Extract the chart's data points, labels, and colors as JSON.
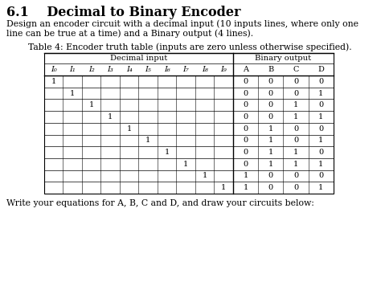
{
  "title": "6.1    Decimal to Binary Encoder",
  "description_line1": "Design an encoder circuit with a decimal input (10 inputs lines, where only one",
  "description_line2": "line can be true at a time) and a Binary output (4 lines).",
  "table_caption": "Table 4: Encoder truth table (inputs are zero unless otherwise specified).",
  "col_header_sub_dec": [
    "I₀",
    "I₁",
    "I₂",
    "I₃",
    "I₄",
    "I₅",
    "I₆",
    "I₇",
    "I₈",
    "I₉"
  ],
  "col_header_sub_bin": [
    "A",
    "B",
    "C",
    "D"
  ],
  "rows": [
    [
      "1",
      "",
      "",
      "",
      "",
      "",
      "",
      "",
      "",
      "",
      "0",
      "0",
      "0",
      "0"
    ],
    [
      "",
      "1",
      "",
      "",
      "",
      "",
      "",
      "",
      "",
      "",
      "0",
      "0",
      "0",
      "1"
    ],
    [
      "",
      "",
      "1",
      "",
      "",
      "",
      "",
      "",
      "",
      "",
      "0",
      "0",
      "1",
      "0"
    ],
    [
      "",
      "",
      "",
      "1",
      "",
      "",
      "",
      "",
      "",
      "",
      "0",
      "0",
      "1",
      "1"
    ],
    [
      "",
      "",
      "",
      "",
      "1",
      "",
      "",
      "",
      "",
      "",
      "0",
      "1",
      "0",
      "0"
    ],
    [
      "",
      "",
      "",
      "",
      "",
      "1",
      "",
      "",
      "",
      "",
      "0",
      "1",
      "0",
      "1"
    ],
    [
      "",
      "",
      "",
      "",
      "",
      "",
      "1",
      "",
      "",
      "",
      "0",
      "1",
      "1",
      "0"
    ],
    [
      "",
      "",
      "",
      "",
      "",
      "",
      "",
      "1",
      "",
      "",
      "0",
      "1",
      "1",
      "1"
    ],
    [
      "",
      "",
      "",
      "",
      "",
      "",
      "",
      "",
      "1",
      "",
      "1",
      "0",
      "0",
      "0"
    ],
    [
      "",
      "",
      "",
      "",
      "",
      "",
      "",
      "",
      "",
      "1",
      "1",
      "0",
      "0",
      "1"
    ]
  ],
  "footer": "Write your equations for A, B, C and D, and draw your circuits below:",
  "bg_color": "#ffffff",
  "text_color": "#000000",
  "title_fontsize": 11.5,
  "body_fontsize": 7.8,
  "table_fontsize": 7.0,
  "table_header_fontsize": 7.2
}
